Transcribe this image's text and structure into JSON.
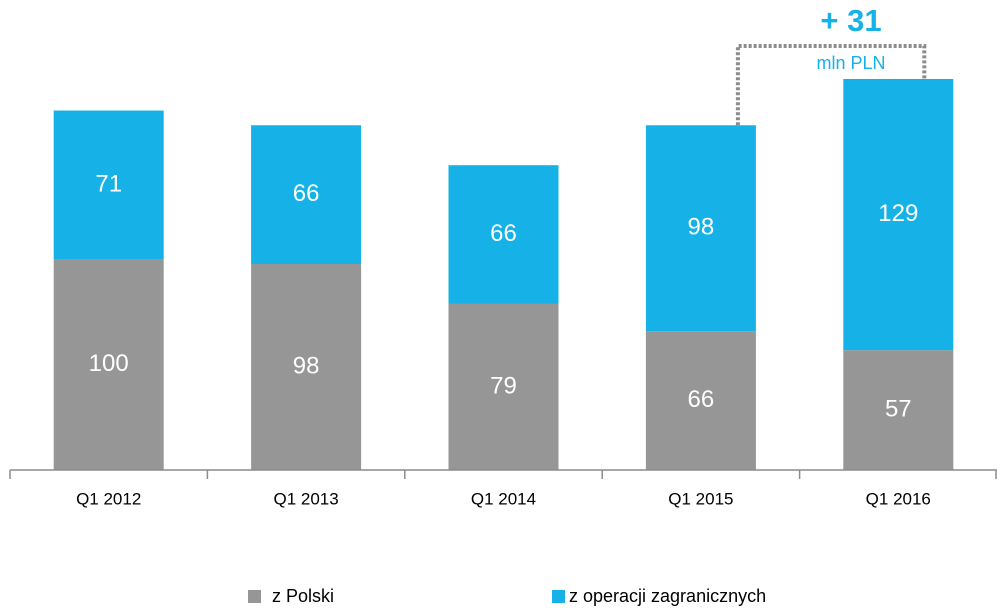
{
  "chart_data": {
    "type": "stacked_bar",
    "categories": [
      "Q1 2012",
      "Q1 2013",
      "Q1 2014",
      "Q1 2015",
      "Q1 2016"
    ],
    "series": [
      {
        "name": "z Polski",
        "color": "#969696",
        "values": [
          100,
          98,
          79,
          66,
          57
        ]
      },
      {
        "name": "z operacji zagranicznych",
        "color": "#16b1e6",
        "values": [
          71,
          66,
          66,
          98,
          129
        ]
      }
    ],
    "annotation": {
      "text": "+ 31",
      "unit": "mln PLN"
    },
    "label_color": "#ffffff"
  }
}
